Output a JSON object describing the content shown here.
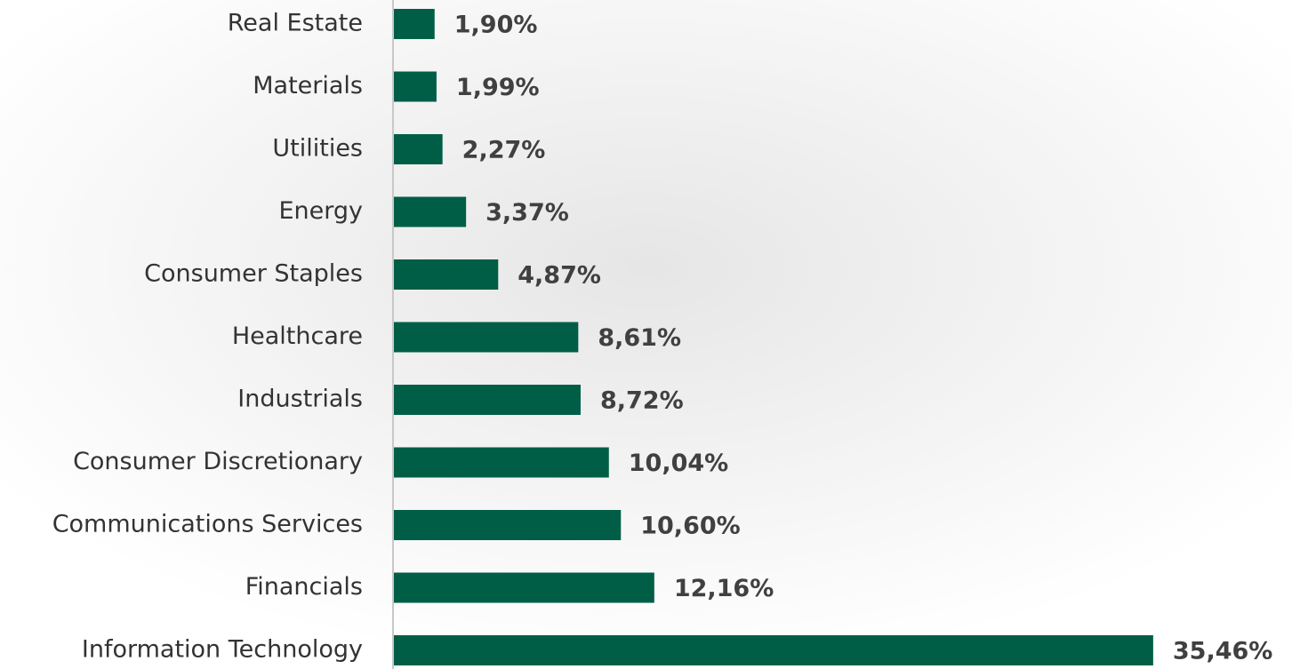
{
  "chart_data": {
    "type": "bar",
    "orientation": "horizontal",
    "categories": [
      "Real Estate",
      "Materials",
      "Utilities",
      "Energy",
      "Consumer Staples",
      "Healthcare",
      "Industrials",
      "Consumer Discretionary",
      "Communications Services",
      "Financials",
      "Information Technology"
    ],
    "values": [
      1.9,
      1.99,
      2.27,
      3.37,
      4.87,
      8.61,
      8.72,
      10.04,
      10.6,
      12.16,
      35.46
    ],
    "value_labels": [
      "1,90%",
      "1,99%",
      "2,27%",
      "3,37%",
      "4,87%",
      "8,61%",
      "8,72%",
      "10,04%",
      "10,60%",
      "12,16%",
      "35,46%"
    ],
    "color": "#005e46"
  }
}
